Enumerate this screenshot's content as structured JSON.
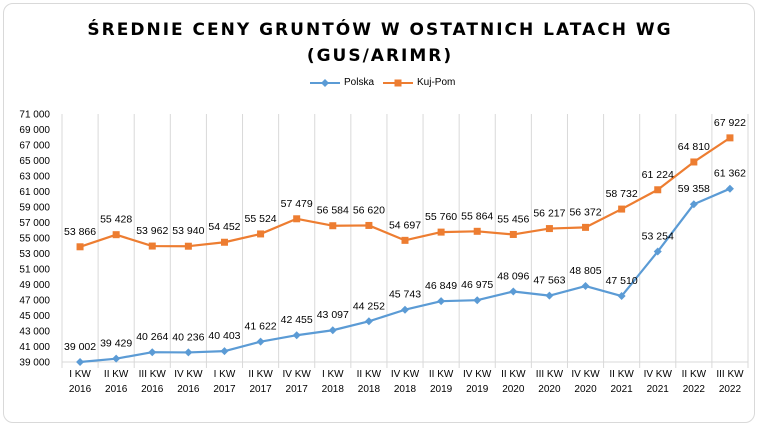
{
  "chart_data": {
    "type": "line",
    "title_line1": "ŚREDNIE CENY GRUNTÓW W OSTATNICH LATACH WG",
    "title_line2": "(GUS/ARIMR)",
    "xlabel": "",
    "ylabel": "",
    "ylim": [
      39000,
      71000
    ],
    "ytick_step": 2000,
    "ytick_labels": [
      "39 000",
      "41 000",
      "43 000",
      "45 000",
      "47 000",
      "49 000",
      "51 000",
      "53 000",
      "55 000",
      "57 000",
      "59 000",
      "61 000",
      "63 000",
      "65 000",
      "67 000",
      "69 000",
      "71 000"
    ],
    "grid": "vertical",
    "legend_position": "top",
    "categories": [
      [
        "I KW",
        "2016"
      ],
      [
        "II KW",
        "2016"
      ],
      [
        "III KW",
        "2016"
      ],
      [
        "IV KW",
        "2016"
      ],
      [
        "I KW",
        "2017"
      ],
      [
        "II KW",
        "2017"
      ],
      [
        "IV KW",
        "2017"
      ],
      [
        "I KW",
        "2018"
      ],
      [
        "II KW",
        "2018"
      ],
      [
        "IV KW",
        "2018"
      ],
      [
        "II KW",
        "2019"
      ],
      [
        "IV KW",
        "2019"
      ],
      [
        "II KW",
        "2020"
      ],
      [
        "III KW",
        "2020"
      ],
      [
        "IV KW",
        "2020"
      ],
      [
        "II KW",
        "2021"
      ],
      [
        "IV KW",
        "2021"
      ],
      [
        "II KW",
        "2022"
      ],
      [
        "III KW",
        "2022"
      ]
    ],
    "series": [
      {
        "name": "Polska",
        "color": "#5b9bd5",
        "marker": "diamond",
        "values": [
          39002,
          39429,
          40264,
          40236,
          40403,
          41622,
          42455,
          43097,
          44252,
          45743,
          46849,
          46975,
          48096,
          47563,
          48805,
          47510,
          53254,
          59358,
          61362
        ],
        "labels": [
          "39 002",
          "39 429",
          "40 264",
          "40 236",
          "40 403",
          "41 622",
          "42 455",
          "43 097",
          "44 252",
          "45 743",
          "46 849",
          "46 975",
          "48 096",
          "47 563",
          "48 805",
          "47 510",
          "53 254",
          "59 358",
          "61 362"
        ]
      },
      {
        "name": "Kuj-Pom",
        "color": "#ed7d31",
        "marker": "square",
        "values": [
          53866,
          55428,
          53962,
          53940,
          54452,
          55524,
          57479,
          56584,
          56620,
          54697,
          55760,
          55864,
          55456,
          56217,
          56372,
          58732,
          61224,
          64810,
          67922
        ],
        "labels": [
          "53 866",
          "55 428",
          "53 962",
          "53 940",
          "54 452",
          "55 524",
          "57 479",
          "56 584",
          "56 620",
          "54 697",
          "55 760",
          "55 864",
          "55 456",
          "56 217",
          "56 372",
          "58 732",
          "61 224",
          "64 810",
          "67 922"
        ]
      }
    ]
  }
}
